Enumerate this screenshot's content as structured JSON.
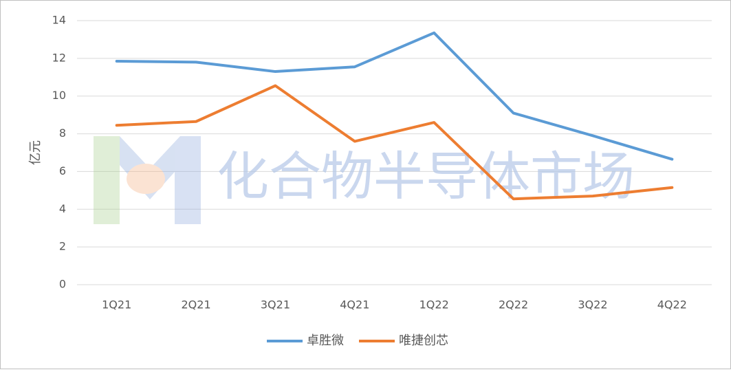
{
  "chart_data": {
    "type": "line",
    "y_label": "亿元",
    "watermark": "化合物半导体市场",
    "categories": [
      "1Q21",
      "2Q21",
      "3Q21",
      "4Q21",
      "1Q22",
      "2Q22",
      "3Q22",
      "4Q22"
    ],
    "series": [
      {
        "name": "卓胜微",
        "color": "#5b9bd5",
        "values": [
          11.85,
          11.8,
          11.3,
          11.55,
          13.35,
          9.1,
          7.9,
          6.65
        ]
      },
      {
        "name": "唯捷创芯",
        "color": "#ed7d31",
        "values": [
          8.45,
          8.65,
          10.55,
          7.6,
          8.6,
          4.55,
          4.7,
          5.15
        ]
      }
    ],
    "ylim": [
      0,
      14
    ],
    "yticks": [
      0,
      2,
      4,
      6,
      8,
      10,
      12,
      14
    ],
    "grid": true,
    "legend": "bottom"
  }
}
